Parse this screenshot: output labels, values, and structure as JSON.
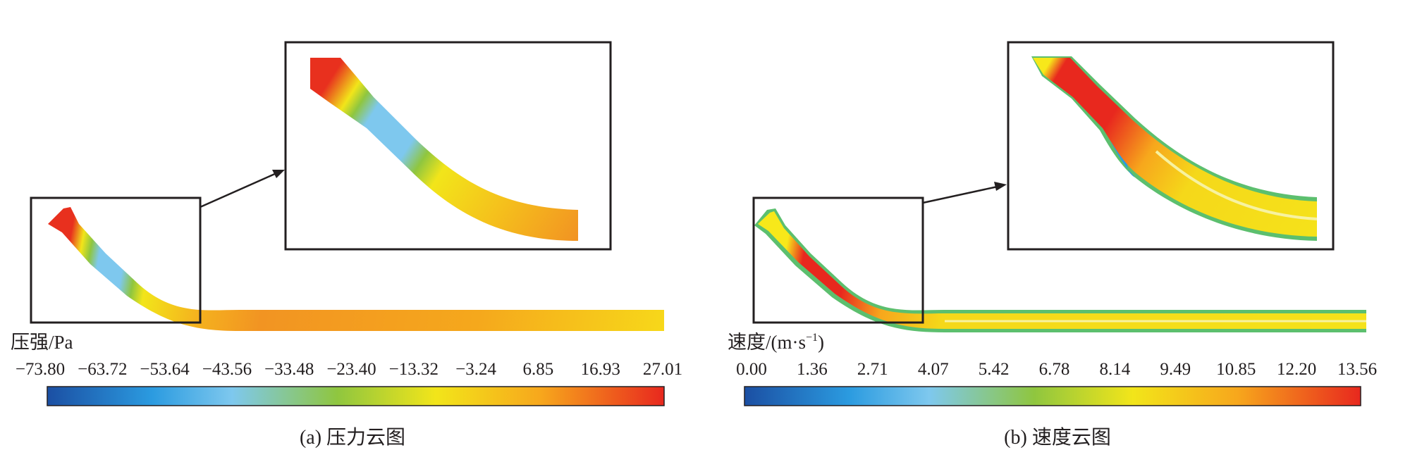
{
  "panel_a": {
    "unit_label": "压强/Pa",
    "ticks": [
      "−73.80",
      "−63.72",
      "−53.64",
      "−43.56",
      "−33.48",
      "−23.40",
      "−13.32",
      "−3.24",
      "6.85",
      "16.93",
      "27.01"
    ],
    "caption": "(a) 压力云图"
  },
  "panel_b": {
    "unit_label_main": "速度/(m·s",
    "unit_label_sup": "−1",
    "unit_label_close": ")",
    "ticks": [
      "0.00",
      "1.36",
      "2.71",
      "4.07",
      "5.42",
      "6.78",
      "8.14",
      "9.49",
      "10.85",
      "12.20",
      "13.56"
    ],
    "caption": "(b) 速度云图"
  },
  "colors": {
    "colormap": [
      "#1b4fa3",
      "#2b9be0",
      "#7ec8ee",
      "#8fc63f",
      "#f2e51a",
      "#f7a71c",
      "#e8281e"
    ],
    "outline": "#231f20"
  }
}
